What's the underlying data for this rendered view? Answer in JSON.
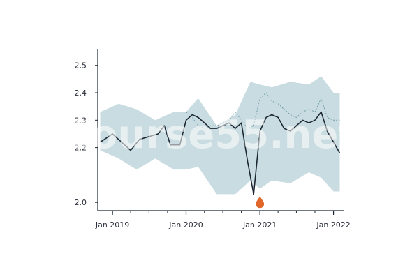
{
  "watermark": "Course55.net",
  "colors": {
    "band": "#bcd3da",
    "dashed": "#6f9ca8",
    "main": "#1d2733",
    "marker": "#e0662a",
    "axis": "#1d2733"
  },
  "chart_data": {
    "type": "line",
    "title": "",
    "xlabel": "",
    "ylabel": "",
    "xlim": [
      "2018-10-20",
      "2022-02-20"
    ],
    "ylim": [
      1.97,
      2.54
    ],
    "grid": false,
    "x_ticks": [
      {
        "date": "2019-01-01",
        "label": "Jan 2019"
      },
      {
        "date": "2020-01-01",
        "label": "Jan 2020"
      },
      {
        "date": "2021-01-01",
        "label": "Jan 2021"
      },
      {
        "date": "2022-01-01",
        "label": "Jan 2022"
      }
    ],
    "y_ticks": [
      {
        "value": 2.5,
        "label": "2.5"
      },
      {
        "value": 2.4,
        "label": "2.4"
      },
      {
        "value": 2.3,
        "label": "2.3"
      },
      {
        "value": 2.2,
        "label": "2.2"
      },
      {
        "value": 2.0,
        "label": "2.0"
      }
    ],
    "band": {
      "x": [
        "2018-11-01",
        "2019-02-01",
        "2019-05-01",
        "2019-08-01",
        "2019-11-01",
        "2020-01-01",
        "2020-03-01",
        "2020-06-01",
        "2020-09-01",
        "2020-11-15",
        "2021-01-01",
        "2021-03-01",
        "2021-06-01",
        "2021-09-01",
        "2021-11-01",
        "2022-01-01",
        "2022-02-01"
      ],
      "upper": [
        2.33,
        2.36,
        2.34,
        2.3,
        2.33,
        2.33,
        2.38,
        2.28,
        2.32,
        2.44,
        2.43,
        2.42,
        2.44,
        2.43,
        2.46,
        2.4,
        2.4
      ],
      "lower": [
        2.19,
        2.16,
        2.12,
        2.16,
        2.12,
        2.12,
        2.13,
        2.03,
        2.03,
        2.08,
        2.05,
        2.08,
        2.07,
        2.11,
        2.09,
        2.04,
        2.04
      ]
    },
    "series": [
      {
        "style": "solid",
        "x": [
          "2018-11-01",
          "2019-01-01",
          "2019-02-15",
          "2019-04-01",
          "2019-05-15",
          "2019-07-01",
          "2019-08-15",
          "2019-09-15",
          "2019-10-15",
          "2019-12-01",
          "2020-01-01",
          "2020-02-01",
          "2020-03-01",
          "2020-04-01",
          "2020-05-01",
          "2020-06-01",
          "2020-07-01",
          "2020-08-01",
          "2020-09-01",
          "2020-10-01",
          "2020-11-01",
          "2020-12-01",
          "2021-01-01",
          "2021-02-01",
          "2021-03-01",
          "2021-04-01",
          "2021-05-01",
          "2021-06-01",
          "2021-07-01",
          "2021-08-01",
          "2021-09-01",
          "2021-10-01",
          "2021-11-01",
          "2021-12-01",
          "2022-01-01",
          "2022-02-01"
        ],
        "y": [
          2.22,
          2.25,
          2.22,
          2.19,
          2.23,
          2.24,
          2.25,
          2.28,
          2.21,
          2.21,
          2.3,
          2.32,
          2.31,
          2.29,
          2.27,
          2.27,
          2.28,
          2.29,
          2.27,
          2.29,
          2.15,
          2.03,
          2.26,
          2.31,
          2.32,
          2.31,
          2.27,
          2.26,
          2.28,
          2.3,
          2.29,
          2.3,
          2.33,
          2.26,
          2.22,
          2.18
        ]
      },
      {
        "style": "dashed",
        "x": [
          "2020-01-01",
          "2020-02-01",
          "2020-03-01",
          "2020-04-01",
          "2020-05-01",
          "2020-06-01",
          "2020-07-01",
          "2020-08-01",
          "2020-09-01",
          "2020-10-01",
          "2020-11-01",
          "2020-12-01",
          "2021-01-01",
          "2021-02-01",
          "2021-03-01",
          "2021-04-01",
          "2021-05-01",
          "2021-06-01",
          "2021-07-01",
          "2021-08-01",
          "2021-09-01",
          "2021-10-01",
          "2021-11-01",
          "2021-12-01",
          "2022-01-01",
          "2022-02-01"
        ],
        "y": [
          2.33,
          2.31,
          2.28,
          2.27,
          2.28,
          2.28,
          2.29,
          2.3,
          2.33,
          2.3,
          2.27,
          2.28,
          2.38,
          2.4,
          2.37,
          2.36,
          2.34,
          2.32,
          2.31,
          2.33,
          2.34,
          2.33,
          2.38,
          2.31,
          2.3,
          2.3
        ]
      }
    ],
    "markers": [
      {
        "x": "2021-01-01",
        "y": 2.0,
        "shape": "drop"
      }
    ]
  }
}
